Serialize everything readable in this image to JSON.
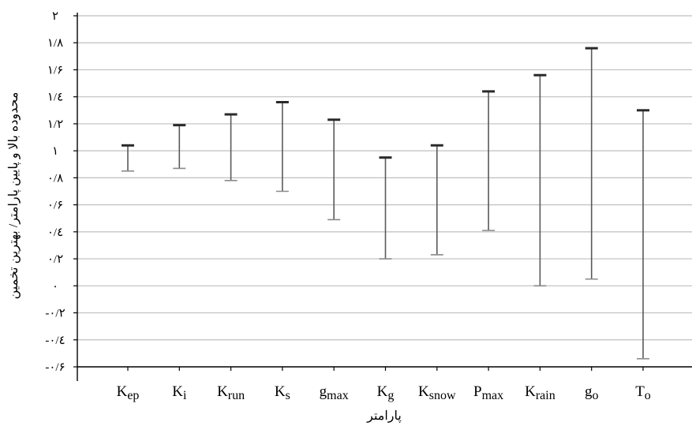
{
  "chart_data": {
    "type": "errorbar",
    "xlabel": "پارامتر",
    "ylabel": "محدوده بالا و پایین پارامتر/ بهترین تخمین",
    "ylim": [
      -0.6,
      2.0
    ],
    "y_ticks": [
      {
        "value": 2.0,
        "label": "۲"
      },
      {
        "value": 1.8,
        "label": "۱/۸"
      },
      {
        "value": 1.6,
        "label": "۱/۶"
      },
      {
        "value": 1.4,
        "label": "۱/٤"
      },
      {
        "value": 1.2,
        "label": "۱/۲"
      },
      {
        "value": 1.0,
        "label": "۱"
      },
      {
        "value": 0.8,
        "label": "۰/۸"
      },
      {
        "value": 0.6,
        "label": "۰/۶"
      },
      {
        "value": 0.4,
        "label": "۰/٤"
      },
      {
        "value": 0.2,
        "label": "۰/۲"
      },
      {
        "value": 0.0,
        "label": "۰"
      },
      {
        "value": -0.2,
        "label": "-۰/۲"
      },
      {
        "value": -0.4,
        "label": "-۰/٤"
      },
      {
        "value": -0.6,
        "label": "-۰/۶"
      }
    ],
    "grid": true,
    "categories": [
      {
        "base": "K",
        "sub": "ep",
        "upper": 1.04,
        "lower": 0.85
      },
      {
        "base": "K",
        "sub": "i",
        "upper": 1.19,
        "lower": 0.87
      },
      {
        "base": "K",
        "sub": "run",
        "upper": 1.27,
        "lower": 0.78
      },
      {
        "base": "K",
        "sub": "s",
        "upper": 1.36,
        "lower": 0.7
      },
      {
        "base": "g",
        "sub": "max",
        "upper": 1.23,
        "lower": 0.49
      },
      {
        "base": "K",
        "sub": "g",
        "upper": 0.95,
        "lower": 0.2
      },
      {
        "base": "K",
        "sub": "snow",
        "upper": 1.04,
        "lower": 0.23
      },
      {
        "base": "P",
        "sub": "max",
        "upper": 1.44,
        "lower": 0.41
      },
      {
        "base": "K",
        "sub": "rain",
        "upper": 1.56,
        "lower": 0.0
      },
      {
        "base": "g",
        "sub": "o",
        "upper": 1.76,
        "lower": 0.05
      },
      {
        "base": "T",
        "sub": "o",
        "upper": 1.3,
        "lower": -0.54
      }
    ]
  }
}
